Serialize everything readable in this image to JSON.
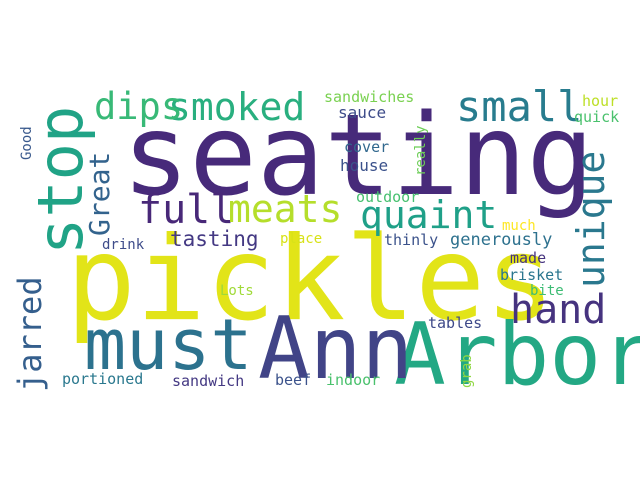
{
  "words": [
    {
      "text": "seating",
      "color": "#472a7a",
      "vertical": false
    },
    {
      "text": "pickles",
      "color": "#e2e418",
      "vertical": false
    },
    {
      "text": "Arbor",
      "color": "#23a884",
      "vertical": false
    },
    {
      "text": "Ann",
      "color": "#414487",
      "vertical": false
    },
    {
      "text": "must",
      "color": "#2c728e",
      "vertical": false
    },
    {
      "text": "stop",
      "color": "#20a386",
      "vertical": true
    },
    {
      "text": "smoked",
      "color": "#29af7f",
      "vertical": false
    },
    {
      "text": "dips",
      "color": "#38b977",
      "vertical": false
    },
    {
      "text": "small",
      "color": "#287c8e",
      "vertical": false
    },
    {
      "text": "full",
      "color": "#482878",
      "vertical": false
    },
    {
      "text": "meats",
      "color": "#b5de2b",
      "vertical": false
    },
    {
      "text": "quaint",
      "color": "#1fa088",
      "vertical": false
    },
    {
      "text": "unique",
      "color": "#2a788e",
      "vertical": true
    },
    {
      "text": "hand",
      "color": "#46337f",
      "vertical": false
    },
    {
      "text": "Great",
      "color": "#33638d",
      "vertical": true
    },
    {
      "text": "jarred",
      "color": "#355f8d",
      "vertical": true
    },
    {
      "text": "tasting",
      "color": "#443983",
      "vertical": false
    },
    {
      "text": "generously",
      "color": "#2d718e",
      "vertical": false
    },
    {
      "text": "sandwiches",
      "color": "#7ad151",
      "vertical": false
    },
    {
      "text": "sauce",
      "color": "#3e4c8a",
      "vertical": false
    },
    {
      "text": "cover",
      "color": "#31688e",
      "vertical": false
    },
    {
      "text": "house",
      "color": "#3b528b",
      "vertical": false
    },
    {
      "text": "outdoor",
      "color": "#46c06f",
      "vertical": false
    },
    {
      "text": "really",
      "color": "#6ece58",
      "vertical": true
    },
    {
      "text": "hour",
      "color": "#bddf26",
      "vertical": false
    },
    {
      "text": "quick",
      "color": "#4ac16d",
      "vertical": false
    },
    {
      "text": "Good",
      "color": "#38588c",
      "vertical": true
    },
    {
      "text": "thinly",
      "color": "#3b528b",
      "vertical": false
    },
    {
      "text": "much",
      "color": "#fde725",
      "vertical": false
    },
    {
      "text": "made",
      "color": "#46337f",
      "vertical": false
    },
    {
      "text": "drink",
      "color": "#3e4c8a",
      "vertical": false
    },
    {
      "text": "place",
      "color": "#d8e219",
      "vertical": false
    },
    {
      "text": "brisket",
      "color": "#2a768e",
      "vertical": false
    },
    {
      "text": "bite",
      "color": "#3dbc74",
      "vertical": false
    },
    {
      "text": "Lots",
      "color": "#a0da39",
      "vertical": false
    },
    {
      "text": "tables",
      "color": "#3e4989",
      "vertical": false
    },
    {
      "text": "grab",
      "color": "#90d743",
      "vertical": true
    },
    {
      "text": "portioned",
      "color": "#2a788e",
      "vertical": false
    },
    {
      "text": "sandwich",
      "color": "#443983",
      "vertical": false
    },
    {
      "text": "beef",
      "color": "#3b528b",
      "vertical": false
    },
    {
      "text": "indoor",
      "color": "#4ac16d",
      "vertical": false
    }
  ]
}
